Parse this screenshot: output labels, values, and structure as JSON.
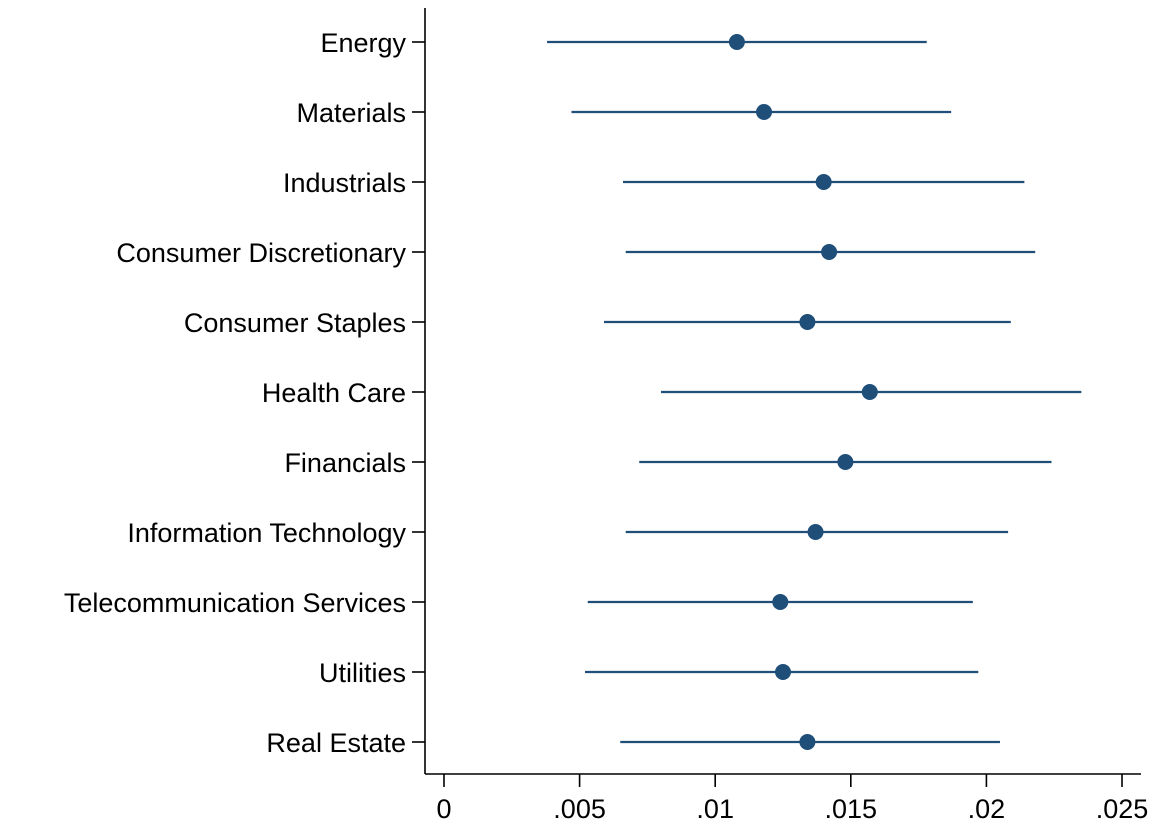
{
  "chart_data": {
    "type": "scatter",
    "title": "",
    "xlabel": "",
    "ylabel": "",
    "xlim": [
      -0.0007,
      0.0257
    ],
    "grid": false,
    "legend": "none",
    "marker_color": "#1f4e79",
    "x_ticks": [
      {
        "value": 0,
        "label": "0"
      },
      {
        "value": 0.005,
        "label": ".005"
      },
      {
        "value": 0.01,
        "label": ".01"
      },
      {
        "value": 0.015,
        "label": ".015"
      },
      {
        "value": 0.02,
        "label": ".02"
      },
      {
        "value": 0.025,
        "label": ".025"
      }
    ],
    "categories": [
      "Energy",
      "Materials",
      "Industrials",
      "Consumer Discretionary",
      "Consumer Staples",
      "Health Care",
      "Financials",
      "Information Technology",
      "Telecommunication Services",
      "Utilities",
      "Real Estate"
    ],
    "estimates": [
      0.0108,
      0.0118,
      0.014,
      0.0142,
      0.0134,
      0.0157,
      0.0148,
      0.0137,
      0.0124,
      0.0125,
      0.0134
    ],
    "ci_lower": [
      0.0038,
      0.0047,
      0.0066,
      0.0067,
      0.0059,
      0.008,
      0.0072,
      0.0067,
      0.0053,
      0.0052,
      0.0065
    ],
    "ci_upper": [
      0.0178,
      0.0187,
      0.0214,
      0.0218,
      0.0209,
      0.0235,
      0.0224,
      0.0208,
      0.0195,
      0.0197,
      0.0205
    ]
  }
}
